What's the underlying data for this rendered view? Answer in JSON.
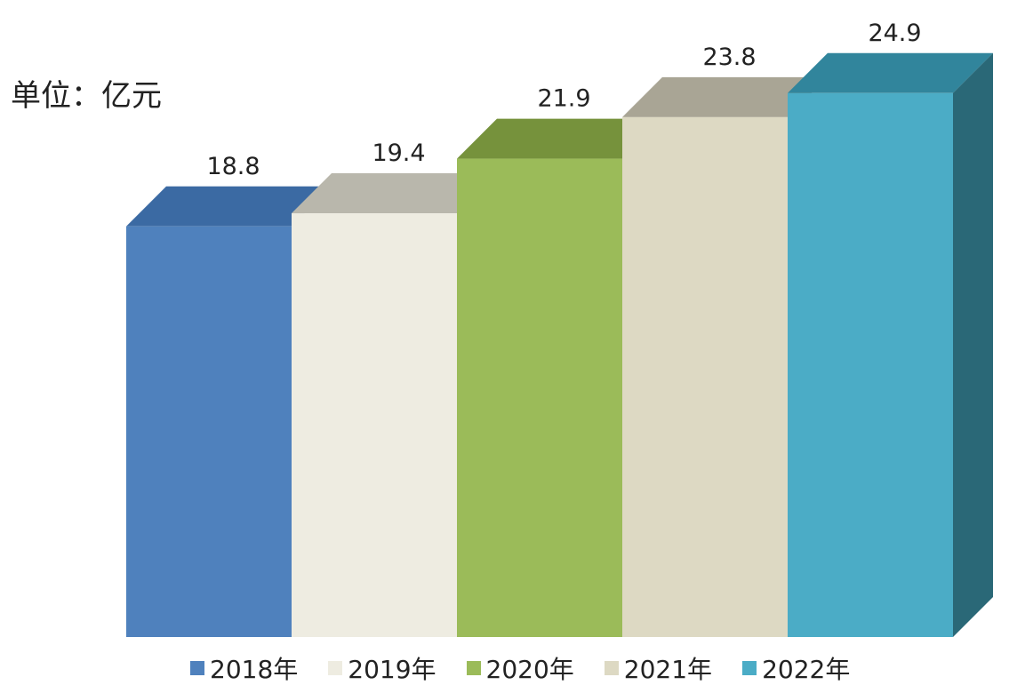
{
  "chart_data": {
    "type": "bar",
    "unit_label": "单位：亿元",
    "categories": [
      "2018年",
      "2019年",
      "2020年",
      "2021年",
      "2022年"
    ],
    "values": [
      18.8,
      19.4,
      21.9,
      23.8,
      24.9
    ],
    "value_labels": [
      "18.8",
      "19.4",
      "21.9",
      "23.8",
      "24.9"
    ],
    "colors": [
      "#4f81bd",
      "#eeece1",
      "#9bbb59",
      "#ddd9c3",
      "#4bacc6"
    ],
    "top_colors": [
      "#3b6aa3",
      "#b9b7ac",
      "#76923c",
      "#a9a595",
      "#31859c"
    ],
    "side_colors": [
      "#355d8f",
      "#c4c2b8",
      "#6b8a35",
      "#b8b4a2",
      "#2a6877"
    ],
    "style": "3d",
    "legend": {
      "position": "bottom"
    }
  }
}
